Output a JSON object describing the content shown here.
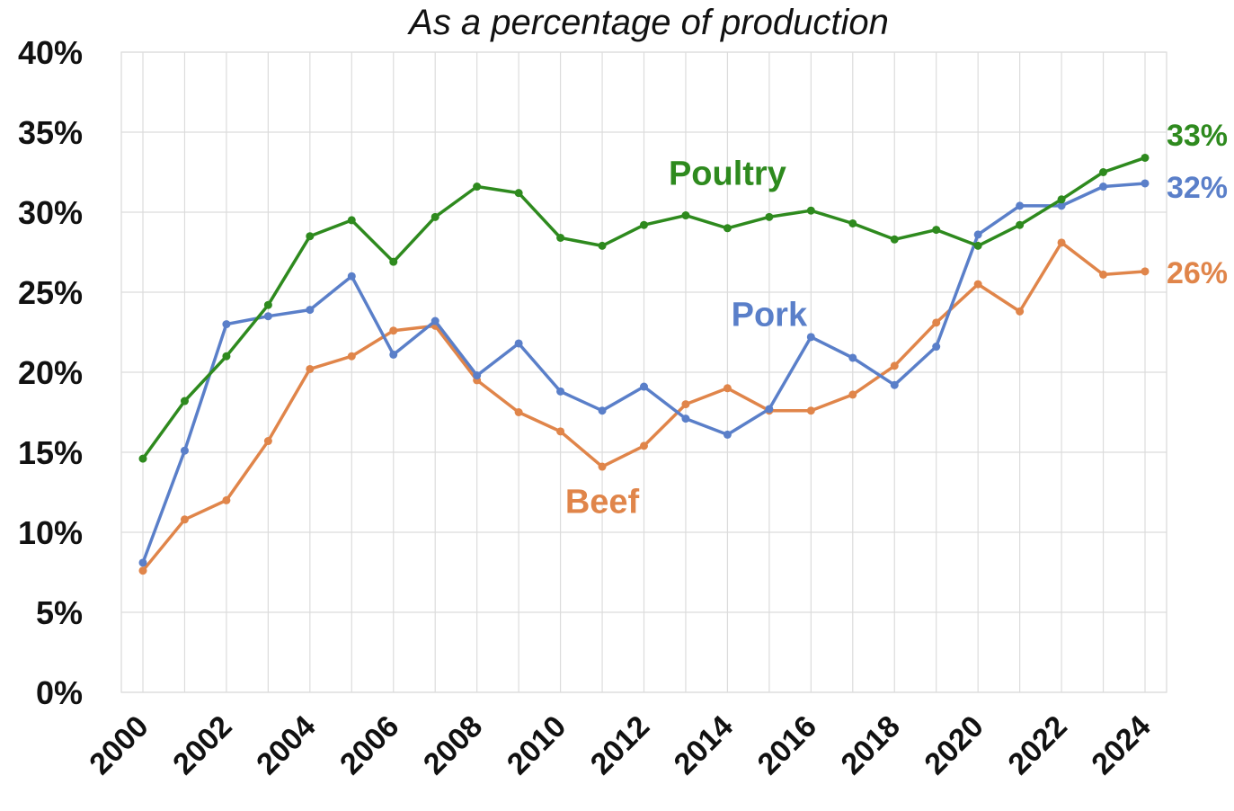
{
  "chart_data": {
    "type": "line",
    "title": "As a percentage of production",
    "xlabel": "",
    "ylabel": "",
    "ylim": [
      0,
      40
    ],
    "xlim": [
      2000,
      2024
    ],
    "yticks": [
      "0%",
      "5%",
      "10%",
      "15%",
      "20%",
      "25%",
      "30%",
      "35%",
      "40%"
    ],
    "yticks_values": [
      0,
      5,
      10,
      15,
      20,
      25,
      30,
      35,
      40
    ],
    "xticks": [
      "2000",
      "2002",
      "2004",
      "2006",
      "2008",
      "2010",
      "2012",
      "2014",
      "2016",
      "2018",
      "2020",
      "2022",
      "2024"
    ],
    "xticks_values": [
      2000,
      2002,
      2004,
      2006,
      2008,
      2010,
      2012,
      2014,
      2016,
      2018,
      2020,
      2022,
      2024
    ],
    "grid": true,
    "legend": "none",
    "x": [
      2000,
      2001,
      2002,
      2003,
      2004,
      2005,
      2006,
      2007,
      2008,
      2009,
      2010,
      2011,
      2012,
      2013,
      2014,
      2015,
      2016,
      2017,
      2018,
      2019,
      2020,
      2021,
      2022,
      2023,
      2024
    ],
    "series": [
      {
        "name": "Poultry",
        "color": "#2e8a1e",
        "values": [
          14.6,
          18.2,
          21.0,
          24.2,
          28.5,
          29.5,
          26.9,
          29.7,
          31.6,
          31.2,
          28.4,
          27.9,
          29.2,
          29.8,
          29.0,
          29.7,
          30.1,
          29.3,
          28.3,
          28.9,
          27.9,
          29.2,
          30.8,
          32.5,
          33.4
        ],
        "end_label": "33%",
        "label_at": [
          2014,
          31.7
        ]
      },
      {
        "name": "Pork",
        "color": "#5a7fc9",
        "values": [
          8.1,
          15.1,
          23.0,
          23.5,
          23.9,
          26.0,
          21.1,
          23.2,
          19.8,
          21.8,
          18.8,
          17.6,
          19.1,
          17.1,
          16.1,
          17.7,
          22.2,
          20.9,
          19.2,
          21.6,
          28.6,
          30.4,
          30.4,
          31.6,
          31.8
        ],
        "end_label": "32%",
        "label_at": [
          2015,
          22.9
        ]
      },
      {
        "name": "Beef",
        "color": "#e0854a",
        "values": [
          7.6,
          10.8,
          12.0,
          15.7,
          20.2,
          21.0,
          22.6,
          22.9,
          19.5,
          17.5,
          16.3,
          14.1,
          15.4,
          18.0,
          19.0,
          17.6,
          17.6,
          18.6,
          20.4,
          23.1,
          25.5,
          23.8,
          28.1,
          26.1,
          26.3
        ],
        "end_label": "26%",
        "label_at": [
          2011,
          11.2
        ]
      }
    ]
  }
}
